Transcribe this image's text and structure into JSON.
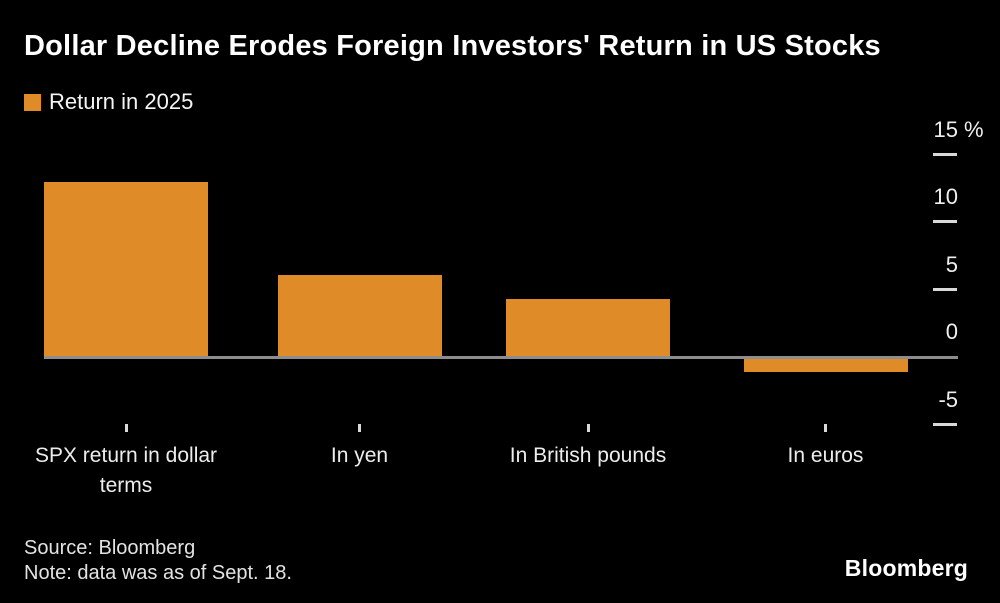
{
  "title": "Dollar Decline Erodes Foreign Investors' Return in US Stocks",
  "legend": {
    "label": "Return in 2025"
  },
  "chart_data": {
    "type": "bar",
    "title": "Dollar Decline Erodes Foreign Investors' Return in US Stocks",
    "legend_entries": [
      "Return in 2025"
    ],
    "legend_position": "top-left",
    "categories": [
      "SPX return in dollar terms",
      "In yen",
      "In British pounds",
      "In euros"
    ],
    "values": [
      12.9,
      6.0,
      4.2,
      -1.0
    ],
    "unit": "%",
    "yticks": [
      15,
      10,
      5,
      0,
      -5
    ],
    "ylim": [
      -6.5,
      16.5
    ],
    "grid": false,
    "y_axis_side": "right",
    "bar_color": "#de8b28",
    "axis_color": "#8d8d8d",
    "tick_color": "#d9d9d9",
    "background_color": "#000000"
  },
  "footer": {
    "source": "Source: Bloomberg",
    "note": "Note: data was as of Sept. 18.",
    "brand": "Bloomberg"
  }
}
